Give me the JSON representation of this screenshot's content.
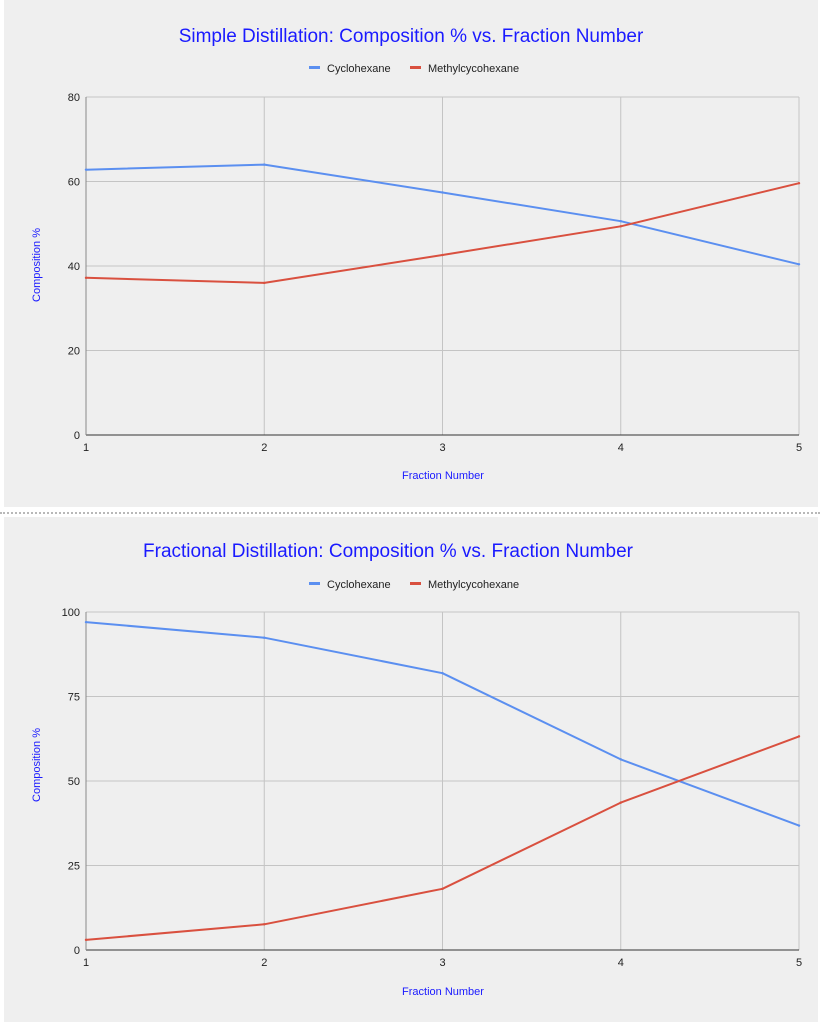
{
  "chart_data": [
    {
      "type": "line",
      "title": "Simple Distillation: Composition % vs. Fraction Number",
      "xlabel": "Fraction Number",
      "ylabel": "Composition %",
      "categories": [
        "1",
        "2",
        "3",
        "4",
        "5"
      ],
      "ylim": [
        0,
        80
      ],
      "yticks": [
        "0",
        "20",
        "40",
        "60",
        "80"
      ],
      "grid": true,
      "legend_position": "top",
      "title_color": "#1a1aff",
      "series": [
        {
          "name": "Cyclohexane",
          "color": "#5b8ff0",
          "values": [
            62.8,
            64.0,
            57.4,
            50.6,
            40.4
          ]
        },
        {
          "name": "Methylcycohexane",
          "color": "#d9503f",
          "values": [
            37.2,
            36.0,
            42.6,
            49.4,
            59.6
          ]
        }
      ]
    },
    {
      "type": "line",
      "title": "Fractional Distillation: Composition %  vs. Fraction Number",
      "xlabel": "Fraction Number",
      "ylabel": "Composition %",
      "categories": [
        "1",
        "2",
        "3",
        "4",
        "5"
      ],
      "ylim": [
        0,
        100
      ],
      "yticks": [
        "0",
        "25",
        "50",
        "75",
        "100"
      ],
      "grid": true,
      "legend_position": "top",
      "title_color": "#1a1aff",
      "series": [
        {
          "name": "Cyclohexane",
          "color": "#5b8ff0",
          "values": [
            97.0,
            92.4,
            81.9,
            56.4,
            36.8
          ]
        },
        {
          "name": "Methylcycohexane",
          "color": "#d9503f",
          "values": [
            3.0,
            7.6,
            18.1,
            43.6,
            63.2
          ]
        }
      ]
    }
  ]
}
